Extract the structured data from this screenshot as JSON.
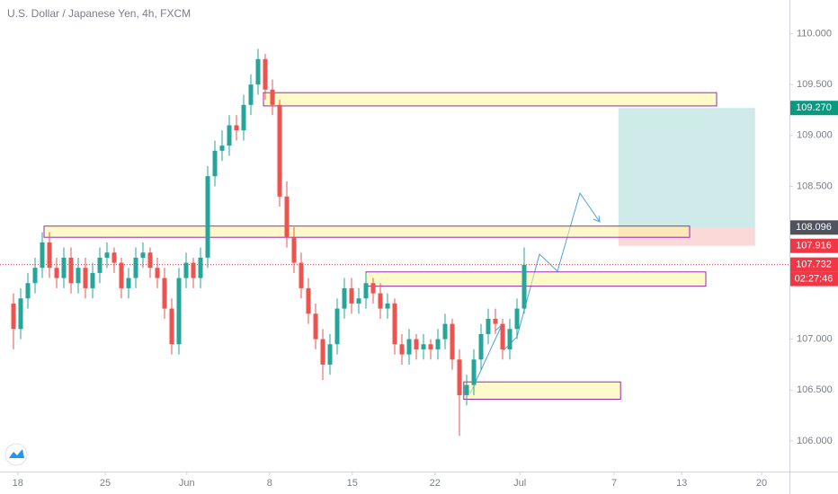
{
  "chart_data": {
    "type": "candlestick",
    "title": "U.S. Dollar / Japanese Yen, 4h, FXCM",
    "xlim": [
      -1.875,
      107.875
    ],
    "xticks": [
      {
        "value": 0.6,
        "label": "18"
      },
      {
        "value": 12.75,
        "label": "25"
      },
      {
        "value": 24.1,
        "label": "Jun"
      },
      {
        "value": 35.6,
        "label": "8"
      },
      {
        "value": 47.1,
        "label": "15"
      },
      {
        "value": 58.6,
        "label": "22"
      },
      {
        "value": 70.4,
        "label": "Jul"
      },
      {
        "value": 83.5,
        "label": "7"
      },
      {
        "value": 92.9,
        "label": "13"
      },
      {
        "value": 104,
        "label": "20"
      }
    ],
    "ylim": [
      105.7,
      110.33
    ],
    "yticks": [
      {
        "value": 110,
        "label": "110.000"
      },
      {
        "value": 109.5,
        "label": "109.500"
      },
      {
        "value": 109,
        "label": "109.000"
      },
      {
        "value": 108.5,
        "label": "108.500"
      },
      {
        "value": 107,
        "label": "107.000"
      },
      {
        "value": 106.5,
        "label": "106.500"
      },
      {
        "value": 106,
        "label": "106.000"
      }
    ],
    "grid": false,
    "up_color": "#26a69a",
    "down_color": "#ef5350",
    "open": [
      107.35,
      107.1,
      107.4,
      107.55,
      107.7,
      107.95,
      107.7,
      107.6,
      107.8,
      107.55,
      107.7,
      107.5,
      107.65,
      107.8,
      107.85,
      107.75,
      107.5,
      107.6,
      107.8,
      107.85,
      107.7,
      107.6,
      107.3,
      106.95,
      107.6,
      107.75,
      107.6,
      107.8,
      108.6,
      108.85,
      108.9,
      109.1,
      109.05,
      109.3,
      109.5,
      109.75,
      109.45,
      109.3,
      108.4,
      108.0,
      107.75,
      107.5,
      107.25,
      107.0,
      106.75,
      106.95,
      107.3,
      107.5,
      107.35,
      107.4,
      107.55,
      107.45,
      107.3,
      107.35,
      106.95,
      106.85,
      107.0,
      106.9,
      106.95,
      106.9,
      107.0,
      107.15,
      106.8,
      106.45,
      106.55,
      106.8,
      107.05,
      107.2,
      107.15,
      106.9,
      107.1,
      107.3
    ],
    "high": [
      107.45,
      107.5,
      107.65,
      107.8,
      108.05,
      108.05,
      107.8,
      107.9,
      107.9,
      107.8,
      107.8,
      107.75,
      107.9,
      107.95,
      107.9,
      107.8,
      107.7,
      107.9,
      107.95,
      107.9,
      107.8,
      107.7,
      107.4,
      107.7,
      107.85,
      107.8,
      107.9,
      108.7,
      108.95,
      109.05,
      109.2,
      109.2,
      109.4,
      109.6,
      109.85,
      109.8,
      109.55,
      109.35,
      108.55,
      108.1,
      107.85,
      107.6,
      107.35,
      107.1,
      107.05,
      107.4,
      107.6,
      107.6,
      107.5,
      107.65,
      107.6,
      107.55,
      107.45,
      107.4,
      107.05,
      107.1,
      107.05,
      107.05,
      107.0,
      107.1,
      107.25,
      107.2,
      106.9,
      106.65,
      106.9,
      107.15,
      107.3,
      107.3,
      107.2,
      107.2,
      107.4,
      107.9
    ],
    "low": [
      106.9,
      107.0,
      107.3,
      107.45,
      107.6,
      107.6,
      107.5,
      107.5,
      107.45,
      107.45,
      107.4,
      107.4,
      107.55,
      107.7,
      107.65,
      107.4,
      107.4,
      107.5,
      107.7,
      107.6,
      107.5,
      107.2,
      106.85,
      106.85,
      107.5,
      107.5,
      107.5,
      107.7,
      108.5,
      108.75,
      108.8,
      108.95,
      108.95,
      109.2,
      109.4,
      109.35,
      109.2,
      108.3,
      107.9,
      107.65,
      107.4,
      107.15,
      106.9,
      106.6,
      106.65,
      106.85,
      107.2,
      107.25,
      107.25,
      107.3,
      107.35,
      107.2,
      107.2,
      106.85,
      106.75,
      106.75,
      106.8,
      106.8,
      106.8,
      106.8,
      106.9,
      106.7,
      106.05,
      106.35,
      106.45,
      106.7,
      106.95,
      107.05,
      106.8,
      106.8,
      107.0,
      107.25
    ],
    "close": [
      107.1,
      107.4,
      107.55,
      107.7,
      107.95,
      107.7,
      107.6,
      107.8,
      107.55,
      107.7,
      107.5,
      107.65,
      107.8,
      107.85,
      107.75,
      107.5,
      107.6,
      107.8,
      107.85,
      107.7,
      107.6,
      107.3,
      106.95,
      107.6,
      107.75,
      107.6,
      107.8,
      108.6,
      108.85,
      108.9,
      109.1,
      109.05,
      109.3,
      109.5,
      109.75,
      109.45,
      109.3,
      108.4,
      108.0,
      107.75,
      107.5,
      107.25,
      107.0,
      106.75,
      106.95,
      107.3,
      107.5,
      107.35,
      107.4,
      107.55,
      107.45,
      107.3,
      107.35,
      106.95,
      106.85,
      107.0,
      106.9,
      106.95,
      106.9,
      107.0,
      107.15,
      106.8,
      106.45,
      106.55,
      106.8,
      107.05,
      107.2,
      107.15,
      106.9,
      107.1,
      107.3,
      107.73
    ],
    "zones": [
      {
        "x": [
          34.75,
          97.75
        ],
        "y": [
          109.29,
          109.42
        ]
      },
      {
        "x": [
          4.25,
          94
        ],
        "y": [
          108.0,
          108.11
        ]
      },
      {
        "x": [
          49,
          96.25
        ],
        "y": [
          107.52,
          107.66
        ]
      },
      {
        "x": [
          62.6,
          84.4
        ],
        "y": [
          106.41,
          106.58
        ]
      }
    ],
    "position": {
      "x": [
        84.1,
        103.1
      ],
      "target": 109.27,
      "entry": 108.096,
      "stop": 107.916
    },
    "price_labels": [
      {
        "value": 109.27,
        "label": "109.270",
        "color": "#089981"
      },
      {
        "value": 108.096,
        "label": "108.096",
        "color": "#50535e"
      },
      {
        "value": 107.916,
        "label": "107.916",
        "color": "#f23645"
      },
      {
        "value": 107.732,
        "label": "107.732",
        "color": "#f23645"
      }
    ],
    "countdown": "02:27:46"
  }
}
